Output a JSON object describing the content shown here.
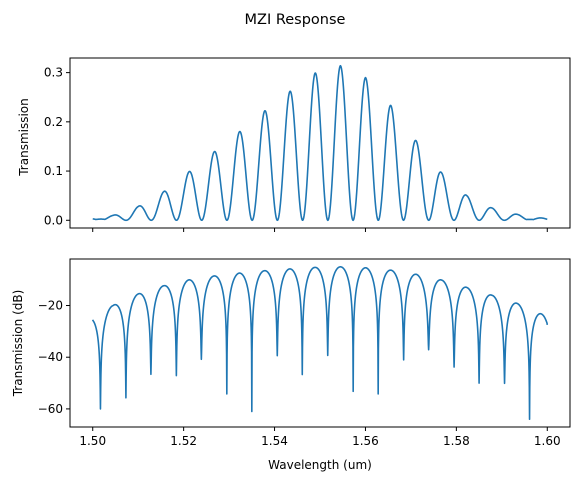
{
  "figure_title": "MZI Response",
  "chart_data": [
    {
      "type": "line",
      "x_range": [
        1.5,
        1.6
      ],
      "xlim": [
        1.495,
        1.605
      ],
      "ylim": [
        -0.0157,
        0.3297
      ],
      "ylabel": "Transmission",
      "xlabel": "",
      "x_ticks": [
        1.5,
        1.52,
        1.54,
        1.56,
        1.58,
        1.6
      ],
      "y_ticks": [
        "0.0",
        "0.1",
        "0.2",
        "0.3"
      ],
      "y_tick_values": [
        0,
        0.1,
        0.2,
        0.3
      ],
      "x_ticklabels_shown": false,
      "grid": false,
      "series": [
        {
          "color": "#1f77b4",
          "fringe_period_um": 0.00555,
          "peak_center_um": 1.5545,
          "peaks": [
            [
              1.5045,
              0.01
            ],
            [
              1.51,
              0.028
            ],
            [
              1.5156,
              0.058
            ],
            [
              1.5211,
              0.098
            ],
            [
              1.5267,
              0.139
            ],
            [
              1.5323,
              0.18
            ],
            [
              1.5378,
              0.222
            ],
            [
              1.5434,
              0.262
            ],
            [
              1.5489,
              0.299
            ],
            [
              1.5545,
              0.314
            ],
            [
              1.56,
              0.29
            ],
            [
              1.5656,
              0.233
            ],
            [
              1.5711,
              0.162
            ],
            [
              1.5767,
              0.097
            ],
            [
              1.5823,
              0.05
            ],
            [
              1.5878,
              0.025
            ],
            [
              1.5934,
              0.012
            ]
          ],
          "edge_values": [
            [
              1.5,
              0.004
            ],
            [
              1.6,
              0.003
            ]
          ]
        }
      ]
    },
    {
      "type": "line",
      "x_range": [
        1.5,
        1.6
      ],
      "xlim": [
        1.495,
        1.605
      ],
      "ylim": [
        -67,
        -2
      ],
      "ylabel": "Transmission (dB)",
      "xlabel": "Wavelength (um)",
      "x_ticks": [
        1.5,
        1.52,
        1.54,
        1.56,
        1.58,
        1.6
      ],
      "x_ticklabels": [
        "1.50",
        "1.52",
        "1.54",
        "1.56",
        "1.58",
        "1.60"
      ],
      "y_ticks": [
        "−20",
        "−40",
        "−60"
      ],
      "y_tick_values": [
        -20,
        -40,
        -60
      ],
      "grid": false,
      "series": [
        {
          "color": "#1f77b4",
          "minima": [
            [
              1.5017,
              -60.0
            ],
            [
              1.5073,
              -55.7
            ],
            [
              1.5128,
              -46.6
            ],
            [
              1.5184,
              -47.1
            ],
            [
              1.5239,
              -40.8
            ],
            [
              1.5295,
              -54.2
            ],
            [
              1.535,
              -61.0
            ],
            [
              1.5406,
              -39.4
            ],
            [
              1.5461,
              -46.7
            ],
            [
              1.5517,
              -39.3
            ],
            [
              1.5573,
              -53.2
            ],
            [
              1.5628,
              -54.2
            ],
            [
              1.5684,
              -41.0
            ],
            [
              1.5739,
              -37.1
            ],
            [
              1.5795,
              -43.8
            ],
            [
              1.585,
              -50.0
            ],
            [
              1.5906,
              -50.1
            ],
            [
              1.5961,
              -64.0
            ]
          ],
          "edge_values": [
            [
              1.5,
              -25.5
            ],
            [
              1.6,
              -27.5
            ]
          ]
        }
      ]
    }
  ]
}
